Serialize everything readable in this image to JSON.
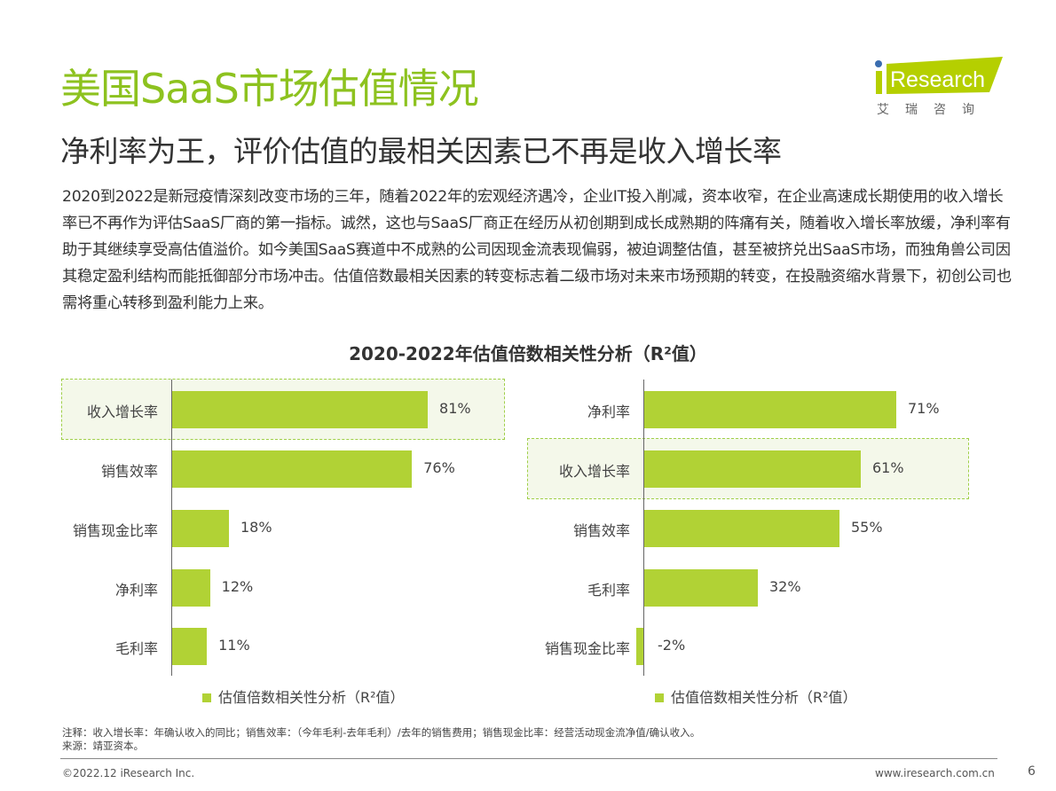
{
  "header": {
    "title": "美国SaaS市场估值情况",
    "subtitle": "净利率为王，评价估值的最相关因素已不再是收入增长率",
    "logo_text": "iResearch",
    "logo_sub": "艾 瑞 咨 询"
  },
  "body_text": "2020到2022是新冠疫情深刻改变市场的三年，随着2022年的宏观经济遇冷，企业IT投入削减，资本收窄，在企业高速成长期使用的收入增长率已不再作为评估SaaS厂商的第一指标。诚然，这也与SaaS厂商正在经历从初创期到成长成熟期的阵痛有关，随着收入增长率放缓，净利率有助于其继续享受高估值溢价。如今美国SaaS赛道中不成熟的公司因现金流表现偏弱，被迫调整估值，甚至被挤兑出SaaS市场，而独角兽公司因其稳定盈利结构而能抵御部分市场冲击。估值倍数最相关因素的转变标志着二级市场对未来市场预期的转变，在投融资缩水背景下，初创公司也需将重心转移到盈利能力上来。",
  "chart_title": "2020-2022年估值倍数相关性分析（R²值）",
  "colors": {
    "bar": "#b1d235",
    "title": "#8dc21f",
    "highlight_border": "#9fcf48"
  },
  "chart_data": [
    {
      "type": "bar",
      "orientation": "horizontal",
      "categories": [
        "收入增长率",
        "销售效率",
        "销售现金比率",
        "净利率",
        "毛利率"
      ],
      "series": [
        {
          "name": "估值倍数相关性分析（R²值）",
          "values": [
            81,
            76,
            18,
            12,
            11
          ]
        }
      ],
      "labels": [
        "81%",
        "76%",
        "18%",
        "12%",
        "11%"
      ],
      "highlighted": "收入增长率",
      "legend": "bottom",
      "unit": "%"
    },
    {
      "type": "bar",
      "orientation": "horizontal",
      "categories": [
        "净利率",
        "收入增长率",
        "销售效率",
        "毛利率",
        "销售现金比率"
      ],
      "series": [
        {
          "name": "估值倍数相关性分析（R²值）",
          "values": [
            71,
            61,
            55,
            32,
            -2
          ]
        }
      ],
      "labels": [
        "71%",
        "61%",
        "55%",
        "32%",
        "-2%"
      ],
      "highlighted": "收入增长率",
      "legend": "bottom",
      "unit": "%"
    }
  ],
  "notes": [
    "注释：收入增长率：年确认收入的同比；销售效率：（今年毛利-去年毛利）/去年的销售费用；销售现金比率：经营活动现金流净值/确认收入。",
    "来源：靖亚资本。"
  ],
  "footer": {
    "copyright": "©2022.12 iResearch Inc.",
    "website": "www.iresearch.com.cn",
    "page": "6"
  }
}
